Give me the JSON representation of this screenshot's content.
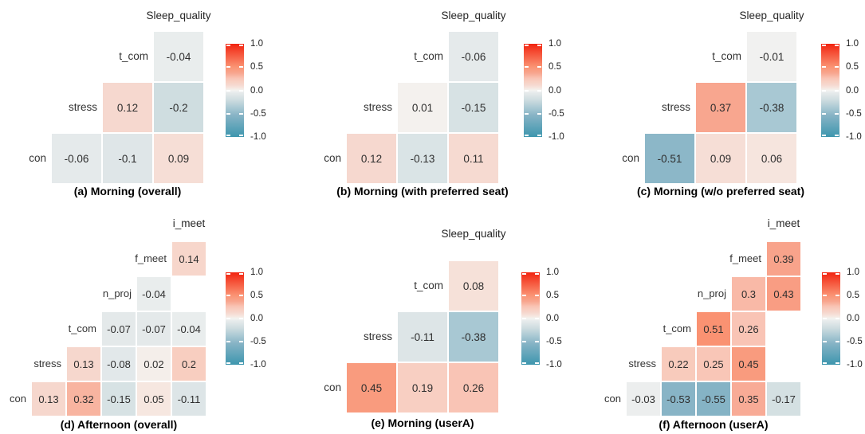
{
  "colorbar": {
    "ticks": [
      "1.0",
      "0.5",
      "0.0",
      "-0.5",
      "-1.0"
    ],
    "domain": [
      -1,
      1
    ],
    "max_color": "#f2230e",
    "zero_color": "#f3f3f1",
    "min_color": "#3d96ae"
  },
  "chart_data": [
    {
      "id": "a",
      "type": "heatmap",
      "caption": "(a) Morning (overall)",
      "top_label": "Sleep_quality",
      "columns": [
        "stress",
        "t_com",
        "Sleep_quality"
      ],
      "rows": [
        {
          "label": "t_com",
          "cells": [
            null,
            null,
            "-0.04"
          ]
        },
        {
          "label": "stress",
          "cells": [
            null,
            "0.12",
            "-0.2"
          ]
        },
        {
          "label": "con",
          "cells": [
            "-0.06",
            "-0.1",
            "0.09"
          ]
        }
      ]
    },
    {
      "id": "b",
      "type": "heatmap",
      "caption": "(b) Morning (with preferred seat)",
      "top_label": "Sleep_quality",
      "columns": [
        "stress",
        "t_com",
        "Sleep_quality"
      ],
      "rows": [
        {
          "label": "t_com",
          "cells": [
            null,
            null,
            "-0.06"
          ]
        },
        {
          "label": "stress",
          "cells": [
            null,
            "0.01",
            "-0.15"
          ]
        },
        {
          "label": "con",
          "cells": [
            "0.12",
            "-0.13",
            "0.11"
          ]
        }
      ]
    },
    {
      "id": "c",
      "type": "heatmap",
      "caption": "(c) Morning (w/o preferred seat)",
      "top_label": "Sleep_quality",
      "columns": [
        "stress",
        "t_com",
        "Sleep_quality"
      ],
      "rows": [
        {
          "label": "t_com",
          "cells": [
            null,
            null,
            "-0.01"
          ]
        },
        {
          "label": "stress",
          "cells": [
            null,
            "0.37",
            "-0.38"
          ]
        },
        {
          "label": "con",
          "cells": [
            "-0.51",
            "0.09",
            "0.06"
          ]
        }
      ]
    },
    {
      "id": "d",
      "type": "heatmap",
      "caption": "(d) Afternoon (overall)",
      "top_label": "i_meet",
      "columns": [
        "stress",
        "t_com",
        "n_proj",
        "f_meet",
        "i_meet"
      ],
      "rows": [
        {
          "label": "f_meet",
          "cells": [
            null,
            null,
            null,
            null,
            "0.14"
          ]
        },
        {
          "label": "n_proj",
          "cells": [
            null,
            null,
            null,
            "-0.04",
            null
          ]
        },
        {
          "label": "t_com",
          "cells": [
            null,
            null,
            "-0.07",
            "-0.07",
            "-0.04"
          ]
        },
        {
          "label": "stress",
          "cells": [
            null,
            "0.13",
            "-0.08",
            "0.02",
            "0.2"
          ]
        },
        {
          "label": "con",
          "cells": [
            "0.13",
            "0.32",
            "-0.15",
            "0.05",
            "-0.11"
          ]
        }
      ]
    },
    {
      "id": "e",
      "type": "heatmap",
      "caption": "(e) Morning (userA)",
      "top_label": "Sleep_quality",
      "columns": [
        "stress",
        "t_com",
        "Sleep_quality"
      ],
      "rows": [
        {
          "label": "t_com",
          "cells": [
            null,
            null,
            "0.08"
          ]
        },
        {
          "label": "stress",
          "cells": [
            null,
            "-0.11",
            "-0.38"
          ]
        },
        {
          "label": "con",
          "cells": [
            "0.45",
            "0.19",
            "0.26"
          ]
        }
      ]
    },
    {
      "id": "f",
      "type": "heatmap",
      "caption": "(f) Afternoon (userA)",
      "top_label": "i_meet",
      "columns": [
        "stress",
        "t_com",
        "n_proj",
        "f_meet",
        "i_meet"
      ],
      "rows": [
        {
          "label": "f_meet",
          "cells": [
            null,
            null,
            null,
            null,
            "0.39"
          ]
        },
        {
          "label": "n_proj",
          "cells": [
            null,
            null,
            null,
            "0.3",
            "0.43"
          ]
        },
        {
          "label": "t_com",
          "cells": [
            null,
            null,
            "0.51",
            "0.26",
            null
          ]
        },
        {
          "label": "stress",
          "cells": [
            null,
            "0.22",
            "0.25",
            "0.45",
            null
          ]
        },
        {
          "label": "con",
          "cells": [
            "-0.03",
            "-0.53",
            "-0.55",
            "0.35",
            "-0.17"
          ]
        }
      ]
    }
  ]
}
